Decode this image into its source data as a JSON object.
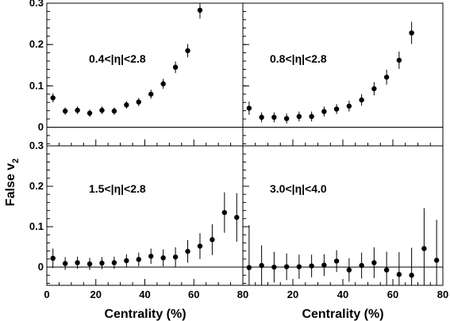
{
  "chart_data": {
    "type": "scatter",
    "xlabel": "Centrality (%)",
    "ylabel": "False v",
    "ylabel_subscript": "2",
    "xlim": [
      0,
      80
    ],
    "ylim": [
      -0.045,
      0.3
    ],
    "x_ticks": [
      0,
      20,
      40,
      60,
      80
    ],
    "y_ticks": [
      0,
      0.1,
      0.2,
      0.3
    ],
    "x_tick_labels": [
      "0",
      "20",
      "40",
      "60",
      "80"
    ],
    "y_tick_labels": [
      "0",
      "0.1",
      "0.2",
      "0.3"
    ],
    "grid": false,
    "reference_line_y": 0,
    "panels": [
      {
        "label_parts": [
          "0.4<|",
          "η",
          "|<2.8"
        ],
        "points": [
          {
            "x": 2.5,
            "y": 0.071,
            "err": 0.011
          },
          {
            "x": 7.5,
            "y": 0.039,
            "err": 0.009
          },
          {
            "x": 12.5,
            "y": 0.041,
            "err": 0.009
          },
          {
            "x": 17.5,
            "y": 0.034,
            "err": 0.009
          },
          {
            "x": 22.5,
            "y": 0.041,
            "err": 0.009
          },
          {
            "x": 27.5,
            "y": 0.039,
            "err": 0.009
          },
          {
            "x": 32.5,
            "y": 0.054,
            "err": 0.009
          },
          {
            "x": 37.5,
            "y": 0.061,
            "err": 0.01
          },
          {
            "x": 42.5,
            "y": 0.08,
            "err": 0.011
          },
          {
            "x": 47.5,
            "y": 0.105,
            "err": 0.012
          },
          {
            "x": 52.5,
            "y": 0.145,
            "err": 0.014
          },
          {
            "x": 57.5,
            "y": 0.185,
            "err": 0.016
          },
          {
            "x": 62.5,
            "y": 0.283,
            "err": 0.02
          }
        ]
      },
      {
        "label_parts": [
          "0.8<|",
          "η",
          "|<2.8"
        ],
        "points": [
          {
            "x": 2.5,
            "y": 0.046,
            "err": 0.016
          },
          {
            "x": 7.5,
            "y": 0.024,
            "err": 0.012
          },
          {
            "x": 12.5,
            "y": 0.024,
            "err": 0.012
          },
          {
            "x": 17.5,
            "y": 0.021,
            "err": 0.012
          },
          {
            "x": 22.5,
            "y": 0.026,
            "err": 0.012
          },
          {
            "x": 27.5,
            "y": 0.026,
            "err": 0.012
          },
          {
            "x": 32.5,
            "y": 0.038,
            "err": 0.012
          },
          {
            "x": 37.5,
            "y": 0.044,
            "err": 0.012
          },
          {
            "x": 42.5,
            "y": 0.051,
            "err": 0.013
          },
          {
            "x": 47.5,
            "y": 0.066,
            "err": 0.014
          },
          {
            "x": 52.5,
            "y": 0.093,
            "err": 0.016
          },
          {
            "x": 57.5,
            "y": 0.121,
            "err": 0.018
          },
          {
            "x": 62.5,
            "y": 0.162,
            "err": 0.021
          },
          {
            "x": 67.5,
            "y": 0.228,
            "err": 0.027
          }
        ]
      },
      {
        "label_parts": [
          "1.5<|",
          "η",
          "|<2.8"
        ],
        "points": [
          {
            "x": 2.5,
            "y": 0.022,
            "err": 0.024
          },
          {
            "x": 7.5,
            "y": 0.009,
            "err": 0.016
          },
          {
            "x": 12.5,
            "y": 0.011,
            "err": 0.015
          },
          {
            "x": 17.5,
            "y": 0.008,
            "err": 0.015
          },
          {
            "x": 22.5,
            "y": 0.01,
            "err": 0.015
          },
          {
            "x": 27.5,
            "y": 0.011,
            "err": 0.015
          },
          {
            "x": 32.5,
            "y": 0.016,
            "err": 0.016
          },
          {
            "x": 37.5,
            "y": 0.019,
            "err": 0.017
          },
          {
            "x": 42.5,
            "y": 0.027,
            "err": 0.019
          },
          {
            "x": 47.5,
            "y": 0.023,
            "err": 0.021
          },
          {
            "x": 52.5,
            "y": 0.025,
            "err": 0.024
          },
          {
            "x": 57.5,
            "y": 0.039,
            "err": 0.028
          },
          {
            "x": 62.5,
            "y": 0.052,
            "err": 0.032
          },
          {
            "x": 67.5,
            "y": 0.068,
            "err": 0.038
          },
          {
            "x": 72.5,
            "y": 0.135,
            "err": 0.05
          },
          {
            "x": 77.5,
            "y": 0.123,
            "err": 0.06
          }
        ]
      },
      {
        "label_parts": [
          "3.0<|",
          "η",
          "|<4.0"
        ],
        "points": [
          {
            "x": 2.5,
            "y": -0.001,
            "err": 0.105
          },
          {
            "x": 7.5,
            "y": 0.004,
            "err": 0.05
          },
          {
            "x": 12.5,
            "y": 0.0,
            "err": 0.038
          },
          {
            "x": 17.5,
            "y": 0.001,
            "err": 0.033
          },
          {
            "x": 22.5,
            "y": 0.001,
            "err": 0.03
          },
          {
            "x": 27.5,
            "y": 0.003,
            "err": 0.028
          },
          {
            "x": 32.5,
            "y": 0.005,
            "err": 0.027
          },
          {
            "x": 37.5,
            "y": 0.015,
            "err": 0.027
          },
          {
            "x": 42.5,
            "y": -0.007,
            "err": 0.029
          },
          {
            "x": 47.5,
            "y": 0.004,
            "err": 0.032
          },
          {
            "x": 52.5,
            "y": 0.011,
            "err": 0.038
          },
          {
            "x": 57.5,
            "y": -0.007,
            "err": 0.045
          },
          {
            "x": 62.5,
            "y": -0.018,
            "err": 0.055
          },
          {
            "x": 67.5,
            "y": -0.02,
            "err": 0.068
          },
          {
            "x": 72.5,
            "y": 0.046,
            "err": 0.1
          },
          {
            "x": 77.5,
            "y": 0.017,
            "err": 0.1
          }
        ]
      }
    ]
  }
}
